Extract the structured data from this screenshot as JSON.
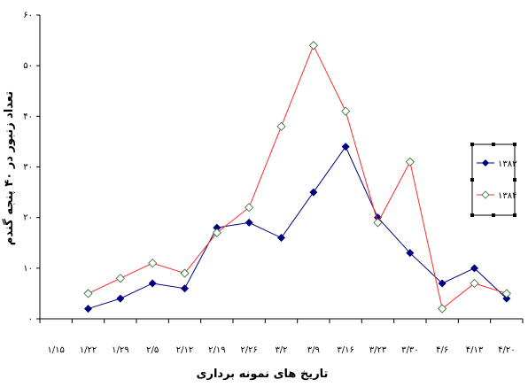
{
  "chart_data": {
    "type": "line",
    "xlabel": "تاریخ های نمونه برداری",
    "ylabel": "تعداد زنبور در ۴۰ پنجه گندم",
    "ylim": [
      0,
      60
    ],
    "yticks": [
      0,
      10,
      20,
      30,
      40,
      50,
      60
    ],
    "ytick_labels": [
      "۰",
      "۱۰",
      "۲۰",
      "۳۰",
      "۴۰",
      "۵۰",
      "۶۰"
    ],
    "categories": [
      "۱/۱۵",
      "۱/۲۲",
      "۱/۲۹",
      "۲/۵",
      "۲/۱۲",
      "۲/۱۹",
      "۲/۲۶",
      "۳/۲",
      "۳/۹",
      "۳/۱۶",
      "۳/۲۳",
      "۳/۳۰",
      "۴/۶",
      "۴/۱۳",
      "۴/۲۰"
    ],
    "grid": false,
    "legend_position": "right",
    "series": [
      {
        "name": "۱۳۸۳",
        "color": "#00007f",
        "marker": "filled-diamond",
        "values": [
          null,
          2,
          4,
          7,
          6,
          18,
          19,
          16,
          25,
          34,
          20,
          13,
          7,
          10,
          4
        ]
      },
      {
        "name": "۱۳۸۴",
        "color": "#ff2a2a",
        "marker": "open-diamond",
        "values": [
          null,
          5,
          8,
          11,
          9,
          17,
          22,
          38,
          54,
          41,
          19,
          31,
          2,
          7,
          5
        ]
      }
    ]
  }
}
